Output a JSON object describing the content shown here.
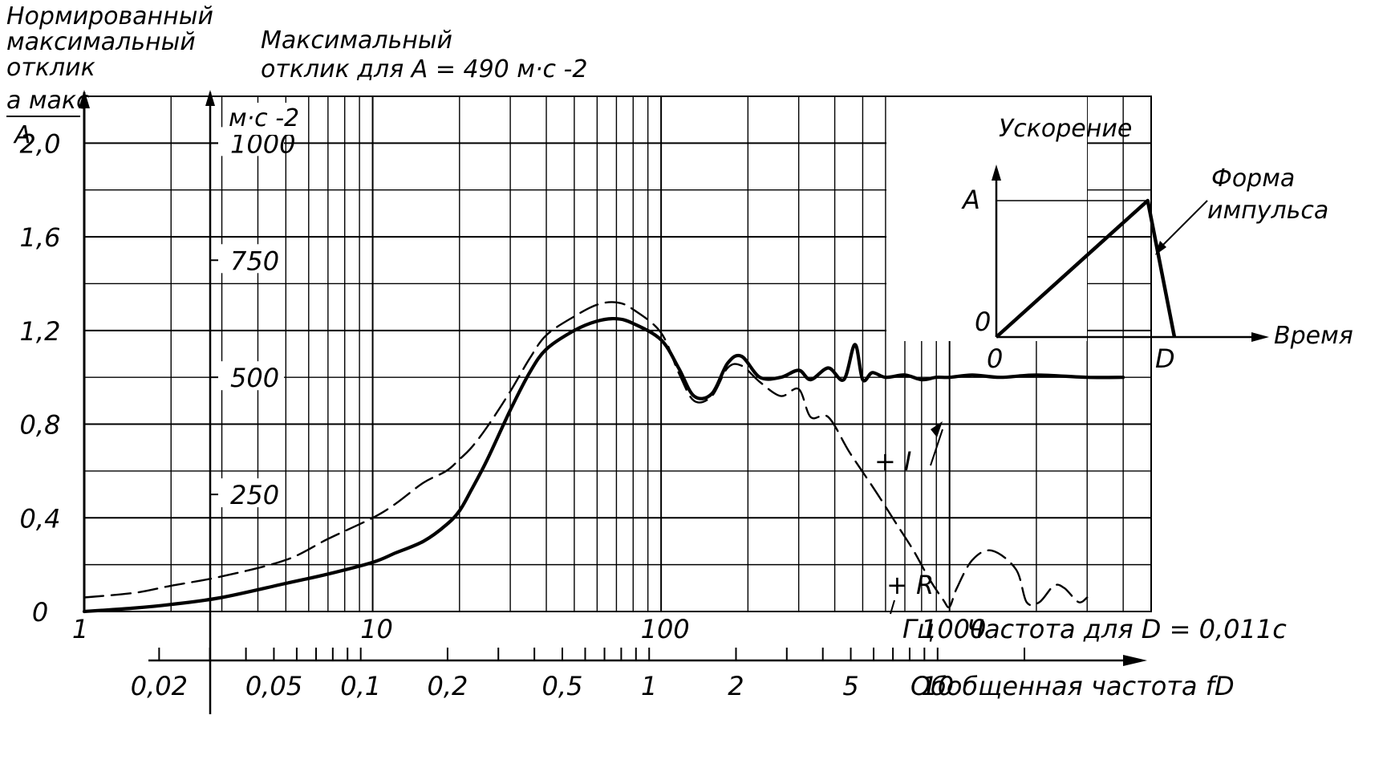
{
  "chart_data": {
    "type": "line",
    "title_left": {
      "line1": "Нормированный",
      "line2": "максимальный",
      "line3": "отклик",
      "ratio_num": "a макс",
      "ratio_den": "A"
    },
    "title_mid": {
      "line1": "Максимальный",
      "line2": "отклик для A = 490 м·с -2",
      "unit": "м·с -2"
    },
    "x_axis": {
      "scale": "log",
      "xlim": [
        1,
        5000
      ],
      "ticks": [
        {
          "v": 1,
          "t": "1"
        },
        {
          "v": 10,
          "t": "10"
        },
        {
          "v": 100,
          "t": "100"
        },
        {
          "v": 1000,
          "t": "1000"
        }
      ],
      "unit": "Гц",
      "label": "Частота для D = 0,011с"
    },
    "fd_axis": {
      "label": "Обобщенная частота fD",
      "ticks": [
        {
          "v": 0.02,
          "t": "0,02"
        },
        {
          "v": 0.05,
          "t": "0,05"
        },
        {
          "v": 0.1,
          "t": "0,1"
        },
        {
          "v": 0.2,
          "t": "0,2"
        },
        {
          "v": 0.5,
          "t": "0,5"
        },
        {
          "v": 1,
          "t": "1"
        },
        {
          "v": 2,
          "t": "2"
        },
        {
          "v": 5,
          "t": "5"
        },
        {
          "v": 10,
          "t": "10"
        }
      ]
    },
    "y_axis": {
      "ylim": [
        0,
        2.2
      ],
      "ticks": [
        {
          "v": 0,
          "t": "0"
        },
        {
          "v": 0.4,
          "t": "0,4"
        },
        {
          "v": 0.8,
          "t": "0,8"
        },
        {
          "v": 1.2,
          "t": "1,2"
        },
        {
          "v": 1.6,
          "t": "1,6"
        },
        {
          "v": 2.0,
          "t": "2,0"
        }
      ]
    },
    "y2_axis": {
      "ticks": [
        {
          "v": 250,
          "t": "250"
        },
        {
          "v": 500,
          "t": "500"
        },
        {
          "v": 750,
          "t": "750"
        },
        {
          "v": 1000,
          "t": "1000"
        }
      ]
    },
    "series": [
      {
        "name": "+I",
        "style": "solid",
        "x": [
          1,
          1.5,
          2,
          3,
          5,
          7,
          10,
          12,
          15,
          18,
          20,
          22,
          25,
          30,
          35,
          40,
          50,
          60,
          70,
          80,
          100,
          115,
          130,
          150,
          170,
          190,
          220,
          260,
          300,
          330,
          380,
          430,
          470,
          500,
          540,
          600,
          700,
          800,
          900,
          1000,
          1200,
          1500,
          2000,
          3000,
          4000
        ],
        "y": [
          0,
          0.015,
          0.03,
          0.06,
          0.12,
          0.16,
          0.21,
          0.25,
          0.3,
          0.37,
          0.43,
          0.52,
          0.65,
          0.86,
          1.02,
          1.12,
          1.2,
          1.24,
          1.25,
          1.23,
          1.16,
          1.04,
          0.92,
          0.93,
          1.06,
          1.09,
          1.0,
          1.0,
          1.03,
          0.99,
          1.04,
          0.99,
          1.14,
          0.99,
          1.02,
          1.0,
          1.01,
          0.99,
          1.0,
          1.0,
          1.01,
          1.0,
          1.01,
          1.0,
          1.0
        ]
      },
      {
        "name": "+R",
        "style": "dashed",
        "x": [
          1,
          1.5,
          2,
          3,
          5,
          7,
          10,
          12,
          15,
          18,
          20,
          22,
          25,
          30,
          35,
          40,
          50,
          60,
          70,
          80,
          100,
          115,
          130,
          150,
          170,
          190,
          220,
          260,
          300,
          330,
          380,
          450,
          550,
          650,
          750,
          850,
          950,
          1000,
          1060,
          1200,
          1400,
          1700,
          1850,
          2050,
          2300,
          2500,
          2800,
          3000
        ],
        "y": [
          0.06,
          0.08,
          0.11,
          0.15,
          0.22,
          0.31,
          0.4,
          0.46,
          0.55,
          0.6,
          0.65,
          0.7,
          0.79,
          0.94,
          1.08,
          1.18,
          1.26,
          1.31,
          1.32,
          1.29,
          1.19,
          1.02,
          0.9,
          0.92,
          1.04,
          1.05,
          0.98,
          0.92,
          0.95,
          0.83,
          0.83,
          0.68,
          0.52,
          0.38,
          0.26,
          0.14,
          0.05,
          0.02,
          0.1,
          0.22,
          0.26,
          0.18,
          0.04,
          0.04,
          0.11,
          0.1,
          0.04,
          0.06
        ]
      }
    ],
    "annotations": {
      "plus_i": "+ I",
      "plus_r": "+ R"
    },
    "inset": {
      "title": "Ускорение",
      "y_label": "A",
      "zero_y": "0",
      "zero_x": "0",
      "d_label": "D",
      "time_label": "Время",
      "pulse_label_1": "Форма",
      "pulse_label_2": "импульса",
      "pulse_shape": [
        [
          0,
          0
        ],
        [
          0.85,
          1.0
        ],
        [
          1.0,
          0
        ]
      ]
    }
  }
}
